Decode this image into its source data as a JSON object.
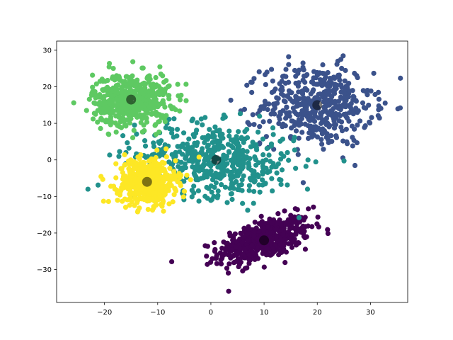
{
  "chart_data": {
    "type": "scatter",
    "title": "",
    "xlabel": "",
    "ylabel": "",
    "xlim": [
      -29,
      37
    ],
    "ylim": [
      -39,
      32.5
    ],
    "grid": false,
    "legend": "none",
    "x_ticks": [
      -20,
      -10,
      0,
      10,
      20,
      30
    ],
    "y_ticks": [
      -30,
      -20,
      -10,
      0,
      10,
      20,
      30
    ],
    "x_tick_labels": [
      "−20",
      "−10",
      "0",
      "10",
      "20",
      "30"
    ],
    "y_tick_labels": [
      "−30",
      "−20",
      "−10",
      "0",
      "10",
      "20",
      "30"
    ],
    "clusters": [
      {
        "color": "#440154",
        "center": [
          10,
          -22
        ],
        "spread": [
          4.3,
          3.2
        ],
        "corr": 0.55,
        "count": 520
      },
      {
        "color": "#3b528b",
        "center": [
          20,
          15
        ],
        "spread": [
          5.2,
          5.5
        ],
        "corr": 0.0,
        "count": 480
      },
      {
        "color": "#21918c",
        "center": [
          1,
          0
        ],
        "spread": [
          7.5,
          5.0
        ],
        "corr": -0.15,
        "count": 520
      },
      {
        "color": "#5ec962",
        "center": [
          -15,
          16.5
        ],
        "spread": [
          3.6,
          3.6
        ],
        "corr": 0.0,
        "count": 520
      },
      {
        "color": "#fde725",
        "center": [
          -12,
          -6
        ],
        "spread": [
          2.7,
          3.1
        ],
        "corr": 0.0,
        "count": 520
      }
    ],
    "centroid_color": "#000000",
    "centroid_alpha": 0.5,
    "centroids": [
      {
        "x": 10,
        "y": -22
      },
      {
        "x": 20,
        "y": 15
      },
      {
        "x": 1,
        "y": 0
      },
      {
        "x": -15,
        "y": 16.5
      },
      {
        "x": -12,
        "y": -6
      }
    ]
  }
}
